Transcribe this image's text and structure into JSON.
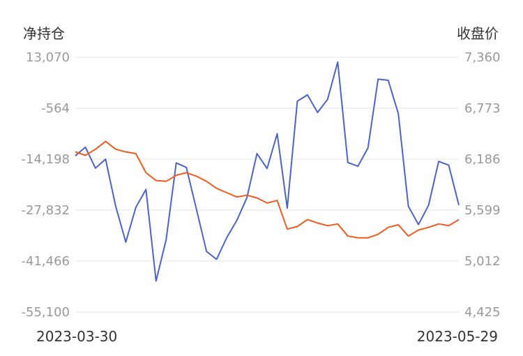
{
  "chart_data": {
    "type": "line",
    "left_axis_title": "净持仓",
    "right_axis_title": "收盘价",
    "left_ticks": [
      "13,070",
      "-564",
      "-14,198",
      "-27,832",
      "-41,466",
      "-55,100"
    ],
    "right_ticks": [
      "7,360",
      "6,773",
      "6,186",
      "5,599",
      "5,012",
      "4,425"
    ],
    "left_ylim": [
      -55100,
      13070
    ],
    "right_ylim": [
      4425,
      7360
    ],
    "x_start_label": "2023-03-30",
    "x_end_label": "2023-05-29",
    "grid": true,
    "series": [
      {
        "axis": "left",
        "color": "#4a62c9",
        "values": [
          -13300,
          -11000,
          -16600,
          -14200,
          -26800,
          -36400,
          -27100,
          -22300,
          -46800,
          -35700,
          -15200,
          -16400,
          -27600,
          -38900,
          -41000,
          -35200,
          -30600,
          -24500,
          -12700,
          -16700,
          -7400,
          -27300,
          1300,
          3000,
          -1700,
          1800,
          11800,
          -15100,
          -16100,
          -11200,
          7200,
          6900,
          -2000,
          -26800,
          -31700,
          -26500,
          -14800,
          -15800,
          -26500
        ],
        "color_name": "blue"
      },
      {
        "axis": "right",
        "color": "#f05a1c",
        "values": [
          6270,
          6230,
          6300,
          6390,
          6300,
          6270,
          6250,
          6030,
          5940,
          5930,
          6000,
          6030,
          5990,
          5930,
          5850,
          5800,
          5750,
          5770,
          5740,
          5680,
          5710,
          5380,
          5410,
          5490,
          5450,
          5420,
          5440,
          5300,
          5280,
          5280,
          5320,
          5400,
          5430,
          5300,
          5370,
          5400,
          5440,
          5420,
          5490
        ],
        "color_name": "orange"
      }
    ]
  }
}
